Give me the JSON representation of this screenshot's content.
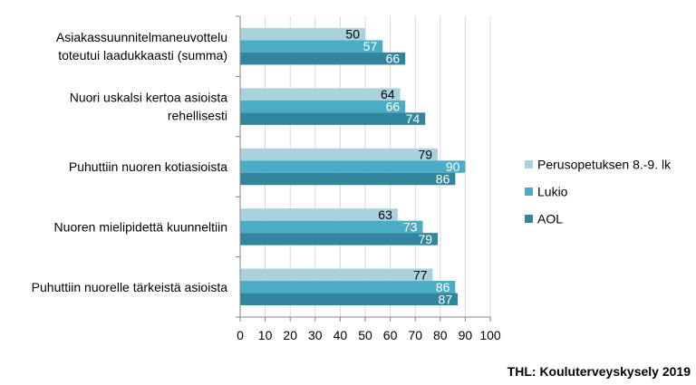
{
  "chart_data": {
    "type": "bar",
    "orientation": "horizontal",
    "categories": [
      [
        "Asiakassuunnitelmaneuvottelu",
        "toteutui laadukkaasti (summa)"
      ],
      [
        "Nuori uskalsi kertoa asioista",
        "rehellisesti"
      ],
      [
        "Puhuttiin nuoren kotiasioista"
      ],
      [
        "Nuoren mielipidettä kuunneltiin"
      ],
      [
        "Puhuttiin nuorelle tärkeistä asioista"
      ]
    ],
    "series": [
      {
        "name": "Perusopetuksen 8.-9. lk",
        "color": "#a9d2dc",
        "label_color": "#000000",
        "values": [
          50,
          64,
          79,
          63,
          77
        ]
      },
      {
        "name": "Lukio",
        "color": "#4bacc6",
        "label_color": "#ffffff",
        "values": [
          57,
          66,
          90,
          73,
          86
        ]
      },
      {
        "name": "AOL",
        "color": "#31859c",
        "label_color": "#ffffff",
        "values": [
          66,
          74,
          86,
          79,
          87
        ]
      }
    ],
    "xlim": [
      0,
      100
    ],
    "xticks": [
      "0",
      "10",
      "20",
      "30",
      "40",
      "50",
      "60",
      "70",
      "80",
      "90",
      "100"
    ],
    "grid": true,
    "legend": "right"
  },
  "source": "THL: Kouluterveyskysely 2019"
}
